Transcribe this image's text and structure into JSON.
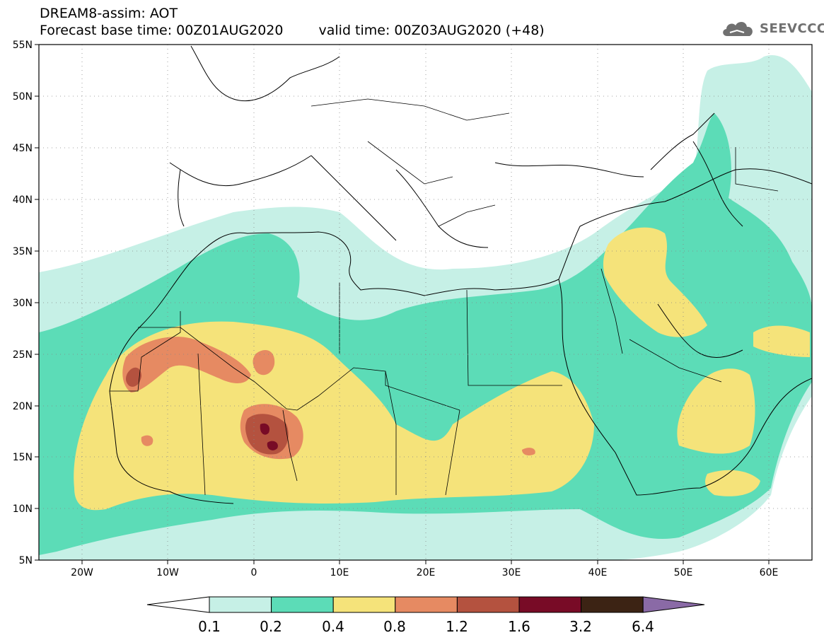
{
  "title": {
    "line1": "DREAM8-assim: AOT",
    "base_time": "Forecast base time: 00Z01AUG2020",
    "valid_time": "valid time: 00Z03AUG2020 (+48)"
  },
  "logo": {
    "text": "SEEVCCC",
    "icon": "cloud-icon"
  },
  "map": {
    "lon_range": [
      -25,
      65
    ],
    "lat_range": [
      5,
      55
    ],
    "lat_labels": [
      "55N",
      "50N",
      "45N",
      "40N",
      "35N",
      "30N",
      "25N",
      "20N",
      "15N",
      "10N",
      "5N"
    ],
    "lon_labels": [
      "20W",
      "10W",
      "0",
      "10E",
      "20E",
      "30E",
      "40E",
      "50E",
      "60E"
    ],
    "gridlines": "dotted"
  },
  "colorbar": {
    "labels": [
      "0.1",
      "0.2",
      "0.4",
      "0.8",
      "1.2",
      "1.6",
      "3.2",
      "6.4"
    ],
    "colors": [
      "#ffffff",
      "#c6f0e6",
      "#5cdcb7",
      "#f5e37a",
      "#e68a62",
      "#b4523f",
      "#780b26",
      "#3c2314",
      "#8a6aa6"
    ]
  }
}
